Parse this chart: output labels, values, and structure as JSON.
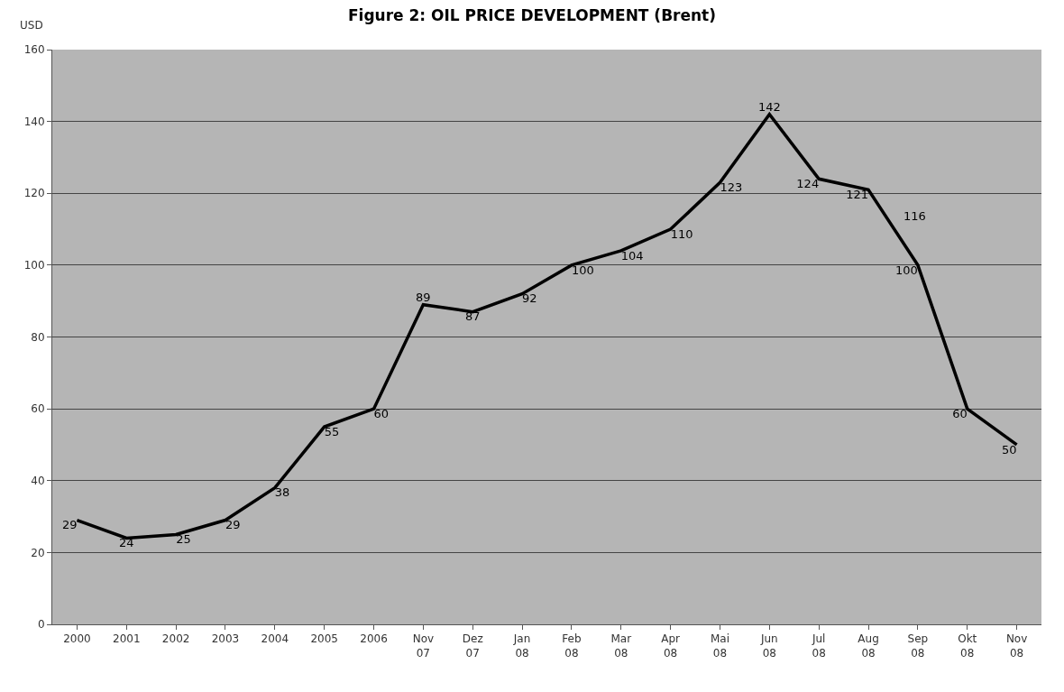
{
  "chart_data": {
    "type": "line",
    "title": "Figure 2: OIL PRICE DEVELOPMENT (Brent)",
    "ylabel": "USD",
    "categories": [
      "2000",
      "2001",
      "2002",
      "2003",
      "2004",
      "2005",
      "2006",
      "Nov 07",
      "Dez 07",
      "Jan 08",
      "Feb 08",
      "Mar 08",
      "Apr 08",
      "Mai 08",
      "Jun 08",
      "Jul 08",
      "Aug 08",
      "Sep 08",
      "Okt 08",
      "Nov 08"
    ],
    "series": [
      {
        "color": "#000000",
        "values": [
          29,
          24,
          25,
          29,
          38,
          55,
          60,
          89,
          87,
          92,
          100,
          104,
          110,
          123,
          142,
          124,
          121,
          100,
          60,
          50
        ]
      }
    ],
    "annotations": [
      "116"
    ],
    "ylim": [
      0,
      160
    ],
    "yticks": [
      0,
      20,
      40,
      60,
      80,
      100,
      120,
      140,
      160
    ],
    "grid": "y",
    "data_labels": true,
    "marker": "none",
    "line_style": "solid"
  }
}
